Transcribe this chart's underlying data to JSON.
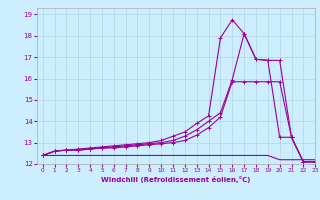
{
  "title": "",
  "xlabel": "Windchill (Refroidissement éolien,°C)",
  "ylabel": "",
  "background_color": "#cceeff",
  "line_color": "#990099",
  "xlim": [
    -0.5,
    23
  ],
  "ylim": [
    12,
    19.3
  ],
  "yticks": [
    12,
    13,
    14,
    15,
    16,
    17,
    18,
    19
  ],
  "xticks": [
    0,
    1,
    2,
    3,
    4,
    5,
    6,
    7,
    8,
    9,
    10,
    11,
    12,
    13,
    14,
    15,
    16,
    17,
    18,
    19,
    20,
    21,
    22,
    23
  ],
  "line1_x": [
    0,
    1,
    2,
    3,
    4,
    5,
    6,
    7,
    8,
    9,
    10,
    11,
    12,
    13,
    14,
    15,
    16,
    17,
    18,
    19,
    20,
    21,
    22,
    23
  ],
  "line1_y": [
    12.4,
    12.4,
    12.4,
    12.4,
    12.4,
    12.4,
    12.4,
    12.4,
    12.4,
    12.4,
    12.4,
    12.4,
    12.4,
    12.4,
    12.4,
    12.4,
    12.4,
    12.4,
    12.4,
    12.4,
    12.2,
    12.2,
    12.2,
    12.2
  ],
  "line2_x": [
    0,
    1,
    2,
    3,
    4,
    5,
    6,
    7,
    8,
    9,
    10,
    11,
    12,
    13,
    14,
    15,
    16,
    17,
    18,
    19,
    20,
    21,
    22,
    23
  ],
  "line2_y": [
    12.4,
    12.6,
    12.65,
    12.65,
    12.7,
    12.75,
    12.75,
    12.8,
    12.85,
    12.9,
    12.95,
    13.0,
    13.1,
    13.35,
    13.7,
    14.2,
    15.85,
    15.85,
    15.85,
    15.85,
    15.85,
    13.25,
    12.1,
    12.1
  ],
  "line3_x": [
    0,
    1,
    2,
    3,
    4,
    5,
    6,
    7,
    8,
    9,
    10,
    11,
    12,
    13,
    14,
    15,
    16,
    17,
    18,
    19,
    20,
    21,
    22,
    23
  ],
  "line3_y": [
    12.4,
    12.6,
    12.65,
    12.65,
    12.7,
    12.75,
    12.8,
    12.85,
    12.9,
    12.95,
    13.0,
    13.1,
    13.3,
    13.6,
    14.0,
    14.4,
    15.95,
    18.1,
    16.9,
    16.85,
    16.85,
    13.25,
    12.1,
    12.1
  ],
  "line4_x": [
    0,
    1,
    2,
    3,
    4,
    5,
    6,
    7,
    8,
    9,
    10,
    11,
    12,
    13,
    14,
    15,
    16,
    17,
    18,
    19,
    20,
    21,
    22,
    23
  ],
  "line4_y": [
    12.4,
    12.6,
    12.65,
    12.7,
    12.75,
    12.8,
    12.85,
    12.9,
    12.95,
    13.0,
    13.1,
    13.3,
    13.5,
    13.9,
    14.25,
    17.9,
    18.75,
    18.1,
    16.9,
    16.85,
    13.25,
    13.25,
    12.1,
    12.1
  ],
  "marker": "+",
  "markersize": 3,
  "linewidth": 0.8
}
